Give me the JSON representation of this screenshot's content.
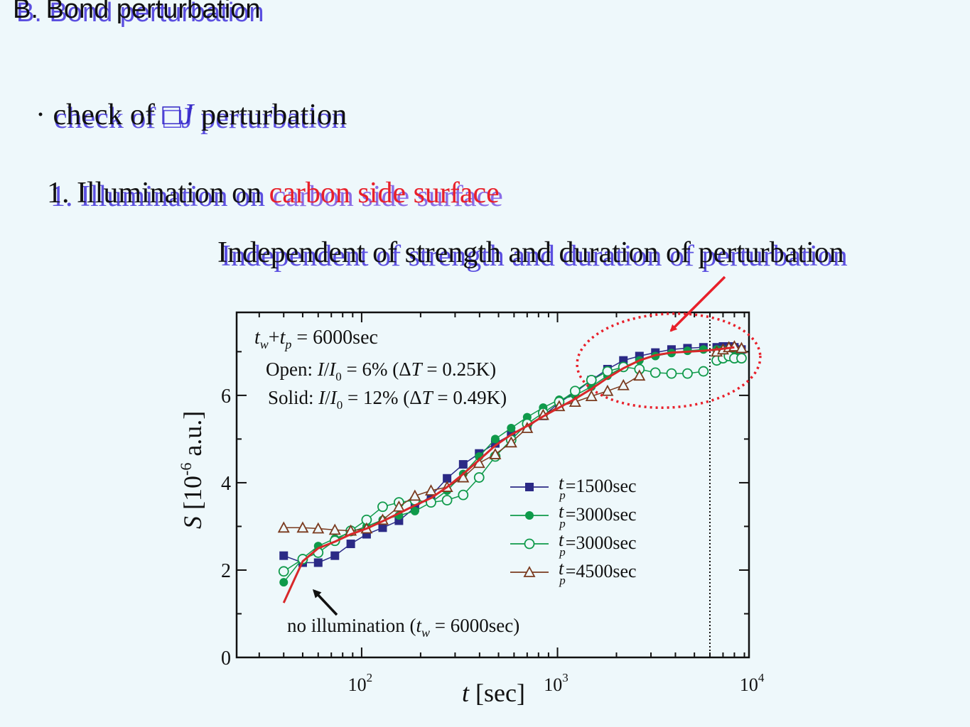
{
  "slide": {
    "title": "B. Bond perturbation",
    "bullet_dot": "·",
    "bullet_pre": "check of ",
    "bullet_symbol": "□J",
    "bullet_post": " perturbation",
    "step_pre": "1. Illumination on ",
    "step_highlight": "carbon side surface",
    "claim": "Independent of strength and duration of perturbation"
  },
  "chart_data": {
    "type": "line",
    "xlabel": "t [sec]",
    "ylabel": "S [10^-6 a.u.]",
    "x_scale": "log",
    "xlim": [
      23,
      9500
    ],
    "ylim": [
      0,
      7.9
    ],
    "x_ticks": [
      100,
      1000,
      10000
    ],
    "x_tick_labels": [
      "10",
      "10",
      "10"
    ],
    "x_tick_exponents": [
      "2",
      "3",
      "4"
    ],
    "y_ticks": [
      0,
      2,
      4,
      6
    ],
    "y_tick_labels": [
      "0",
      "2",
      "4",
      "6"
    ],
    "annotation_tw_tp": "t_w+t_p = 6000sec",
    "annotation_open": "Open: I/I_0 = 6%   (ΔT = 0.25K)",
    "annotation_solid": "Solid: I/I_0 = 12%   (ΔT = 0.49K)",
    "annotation_no_illum": "no illumination (t_w = 6000sec)",
    "vline_x": 6000,
    "colors": {
      "blue": "#2b2a86",
      "green": "#0f9a4a",
      "brown": "#7a3a1e",
      "red": "#d8282a"
    },
    "legend_placement": "right-middle",
    "series": [
      {
        "name": "t_p=1500sec",
        "marker": "square-filled",
        "color": "#2b2a86",
        "x": [
          40,
          50,
          60,
          73,
          88,
          106,
          128,
          155,
          187,
          226,
          273,
          330,
          398,
          481,
          580,
          700,
          845,
          1020,
          1230,
          1490,
          1800,
          2170,
          2620,
          3160,
          3820,
          4610,
          5560
        ],
        "y": [
          2.33,
          2.17,
          2.17,
          2.33,
          2.6,
          2.82,
          2.97,
          3.13,
          3.43,
          3.7,
          4.1,
          4.42,
          4.67,
          4.9,
          5.1,
          5.28,
          5.53,
          5.83,
          6.07,
          6.35,
          6.6,
          6.8,
          6.9,
          6.98,
          7.05,
          7.08,
          7.1
        ]
      },
      {
        "name": "t_p=3000sec",
        "marker": "circle-filled",
        "color": "#0f9a4a",
        "x": [
          40,
          50,
          60,
          73,
          88,
          106,
          128,
          155,
          187,
          226,
          273,
          330,
          398,
          481,
          580,
          700,
          845,
          1020,
          1230,
          1490,
          1800,
          2170,
          2620,
          3160,
          3820,
          4610,
          5560
        ],
        "y": [
          1.72,
          2.27,
          2.55,
          2.72,
          2.87,
          3.0,
          3.15,
          3.25,
          3.35,
          3.55,
          3.82,
          4.2,
          4.6,
          5.0,
          5.25,
          5.5,
          5.72,
          5.9,
          6.0,
          6.2,
          6.45,
          6.65,
          6.8,
          6.9,
          6.97,
          7.02,
          7.05
        ]
      },
      {
        "name": "t_p=3000sec",
        "marker": "circle-open",
        "color": "#0f9a4a",
        "x": [
          40,
          50,
          60,
          73,
          88,
          106,
          128,
          155,
          187,
          226,
          273,
          330,
          398,
          481,
          580,
          700,
          845,
          1020,
          1230,
          1490,
          1800,
          2170,
          2620,
          3160,
          3820,
          4610,
          5560
        ],
        "y": [
          1.97,
          2.25,
          2.4,
          2.67,
          2.9,
          3.15,
          3.45,
          3.55,
          3.6,
          3.55,
          3.6,
          3.72,
          4.12,
          4.6,
          4.98,
          5.35,
          5.6,
          5.85,
          6.1,
          6.35,
          6.55,
          6.65,
          6.6,
          6.52,
          6.5,
          6.5,
          6.55
        ]
      },
      {
        "name": "t_p=4500sec",
        "marker": "triangle-open",
        "color": "#7a3a1e",
        "x": [
          40,
          50,
          60,
          73,
          88,
          106,
          128,
          155,
          187,
          226,
          273,
          330,
          398,
          481,
          580,
          700,
          845,
          1020,
          1230,
          1490,
          1800,
          2170,
          2620
        ],
        "y": [
          2.97,
          2.97,
          2.95,
          2.92,
          2.9,
          2.95,
          3.15,
          3.45,
          3.7,
          3.82,
          3.9,
          4.12,
          4.45,
          4.65,
          4.92,
          5.25,
          5.55,
          5.75,
          5.85,
          5.98,
          6.1,
          6.23,
          6.45
        ]
      },
      {
        "name": "no illumination",
        "marker": "none",
        "color": "#d8282a",
        "x": [
          40,
          45,
          50,
          60,
          73,
          88,
          106,
          128,
          155,
          187,
          226,
          273,
          330,
          398,
          481,
          580,
          700,
          845,
          1020,
          1230,
          1490,
          1800,
          2170,
          2620,
          3160,
          3820,
          4610,
          5560,
          6500,
          8000
        ],
        "y": [
          1.25,
          1.75,
          2.2,
          2.5,
          2.65,
          2.82,
          2.95,
          3.12,
          3.3,
          3.48,
          3.65,
          3.9,
          4.2,
          4.52,
          4.85,
          5.1,
          5.3,
          5.52,
          5.72,
          5.92,
          6.15,
          6.4,
          6.62,
          6.8,
          6.92,
          6.98,
          7.0,
          7.02,
          7.05,
          7.1
        ]
      }
    ],
    "post_x": [
      6500,
      7000,
      7500,
      8000,
      8700
    ],
    "post_series": [
      {
        "y": [
          7.1,
          7.12,
          7.12,
          7.1,
          7.05
        ]
      },
      {
        "y": [
          7.05,
          7.05,
          7.02,
          6.98,
          6.85
        ]
      },
      {
        "y": [
          6.8,
          6.85,
          6.9,
          6.85,
          6.85
        ]
      },
      {
        "y": [
          7.0,
          7.05,
          7.1,
          7.12,
          7.08
        ]
      }
    ]
  }
}
